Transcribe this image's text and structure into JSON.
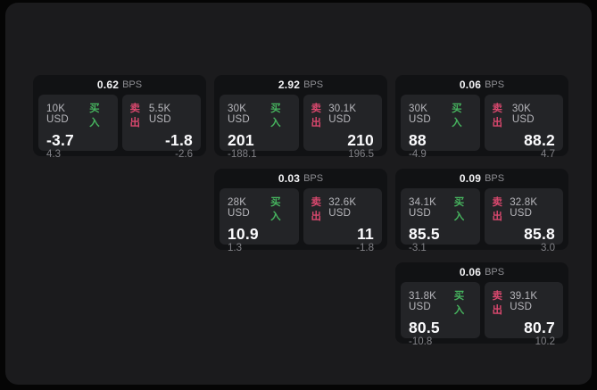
{
  "labels": {
    "bps_unit": "BPS",
    "buy": "买入",
    "sell": "卖出"
  },
  "colors": {
    "buy_green": "#46b35e",
    "sell_pink": "#d9486e",
    "window_bg": "#1b1b1d",
    "card_bg": "#111214",
    "tile_bg": "#232427"
  },
  "cards": [
    {
      "bps": "0.62",
      "row": 1,
      "col": 1,
      "buy": {
        "size": "10K USD",
        "price": "-3.7",
        "sub": "4.3"
      },
      "sell": {
        "size": "5.5K USD",
        "price": "-1.8",
        "sub": "-2.6"
      }
    },
    {
      "bps": "2.92",
      "row": 1,
      "col": 2,
      "buy": {
        "size": "30K USD",
        "price": "201",
        "sub": "-188.1"
      },
      "sell": {
        "size": "30.1K USD",
        "price": "210",
        "sub": "196.5"
      }
    },
    {
      "bps": "0.06",
      "row": 1,
      "col": 3,
      "buy": {
        "size": "30K USD",
        "price": "88",
        "sub": "-4.9"
      },
      "sell": {
        "size": "30K USD",
        "price": "88.2",
        "sub": "4.7"
      }
    },
    {
      "bps": "0.03",
      "row": 2,
      "col": 2,
      "buy": {
        "size": "28K USD",
        "price": "10.9",
        "sub": "1.3"
      },
      "sell": {
        "size": "32.6K USD",
        "price": "11",
        "sub": "-1.8"
      }
    },
    {
      "bps": "0.09",
      "row": 2,
      "col": 3,
      "buy": {
        "size": "34.1K USD",
        "price": "85.5",
        "sub": "-3.1"
      },
      "sell": {
        "size": "32.8K USD",
        "price": "85.8",
        "sub": "3.0"
      }
    },
    {
      "bps": "0.06",
      "row": 3,
      "col": 3,
      "buy": {
        "size": "31.8K USD",
        "price": "80.5",
        "sub": "-10.8"
      },
      "sell": {
        "size": "39.1K USD",
        "price": "80.7",
        "sub": "10.2"
      }
    }
  ]
}
